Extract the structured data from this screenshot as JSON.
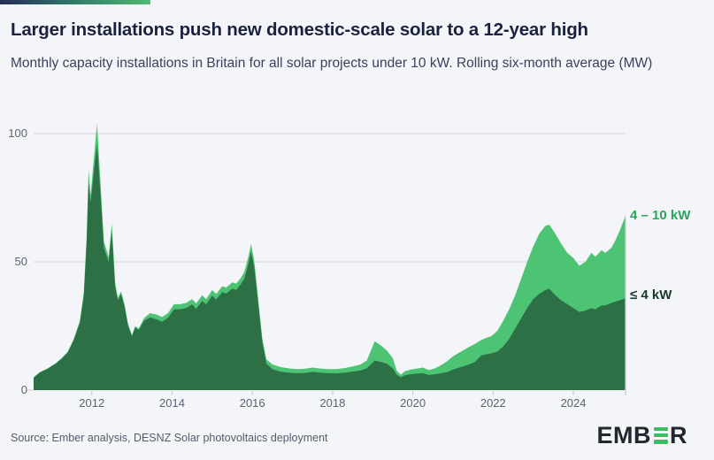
{
  "header": {
    "accent_colors": [
      "#262b5a",
      "#53b96f"
    ]
  },
  "footer": {
    "source": "Source: Ember analysis, DESNZ Solar photovoltaics deployment",
    "logo_left": "EMB",
    "logo_right": "R",
    "logo_green_bar_color": "#3dbd62"
  },
  "chart_data": {
    "type": "area",
    "stacked": true,
    "title": "Larger installations push new domestic-scale solar to a 12-year high",
    "subtitle": "Monthly capacity installations in Britain for all solar projects under 10 kW. Rolling six-month average (MW)",
    "ylim": [
      0,
      100
    ],
    "yticks": [
      0,
      50,
      100
    ],
    "xticks": [
      2012,
      2014,
      2016,
      2018,
      2020,
      2022,
      2024
    ],
    "xlim": [
      2010.55,
      2025.3
    ],
    "grid": "horizontal gridlines at 50 and 100, right edge axis line, bottom year ticks",
    "legend_position": "right of final data points",
    "colors": {
      "light_area": "#4dc473",
      "dark_area": "#2e7045",
      "grid": "#d7d9e0",
      "tick": "#c9ccd4",
      "axis_text": "#5d6174"
    },
    "legend": [
      {
        "label": "4 – 10 kW",
        "series": "4 – 10 kW",
        "color": "#4dc473",
        "text_color": "#28a65b"
      },
      {
        "label": "≤ 4 kW",
        "series": "≤ 4 kW",
        "color": "#2e7045",
        "text_color": "#173a29"
      }
    ],
    "x": [
      2010.55,
      2010.7,
      2010.9,
      2011.1,
      2011.25,
      2011.4,
      2011.55,
      2011.7,
      2011.8,
      2011.87,
      2011.92,
      2011.97,
      2012.05,
      2012.13,
      2012.22,
      2012.3,
      2012.42,
      2012.5,
      2012.58,
      2012.65,
      2012.73,
      2012.82,
      2012.9,
      2013.0,
      2013.08,
      2013.17,
      2013.3,
      2013.45,
      2013.6,
      2013.75,
      2013.9,
      2014.05,
      2014.2,
      2014.35,
      2014.5,
      2014.6,
      2014.75,
      2014.85,
      2015.0,
      2015.1,
      2015.25,
      2015.35,
      2015.5,
      2015.6,
      2015.7,
      2015.8,
      2015.9,
      2015.97,
      2016.05,
      2016.15,
      2016.25,
      2016.35,
      2016.5,
      2016.7,
      2016.9,
      2017.1,
      2017.3,
      2017.5,
      2017.7,
      2017.9,
      2018.1,
      2018.3,
      2018.5,
      2018.7,
      2018.85,
      2019.05,
      2019.2,
      2019.35,
      2019.5,
      2019.6,
      2019.7,
      2019.8,
      2019.95,
      2020.1,
      2020.25,
      2020.4,
      2020.55,
      2020.7,
      2020.85,
      2021.0,
      2021.2,
      2021.4,
      2021.55,
      2021.7,
      2021.85,
      2021.95,
      2022.1,
      2022.25,
      2022.4,
      2022.55,
      2022.7,
      2022.85,
      2023.0,
      2023.15,
      2023.3,
      2023.4,
      2023.55,
      2023.7,
      2023.85,
      2024.0,
      2024.15,
      2024.3,
      2024.45,
      2024.55,
      2024.7,
      2024.8,
      2024.95,
      2025.05,
      2025.15,
      2025.3
    ],
    "series": [
      {
        "name": "≤ 4 kW",
        "values": [
          4.8,
          6.8,
          8.3,
          10.3,
          12.2,
          14.7,
          19.5,
          26.2,
          36.5,
          57,
          81,
          73,
          85,
          96,
          76,
          55.5,
          50,
          62,
          40.5,
          35,
          37.5,
          32.2,
          25.3,
          21,
          24.4,
          23.4,
          27,
          28.3,
          27.7,
          26.7,
          28.2,
          31.5,
          31.5,
          32,
          33.4,
          31.7,
          34.8,
          33.4,
          36.8,
          35.3,
          38.2,
          37.7,
          39.6,
          39.1,
          41,
          43.4,
          49.2,
          54,
          47.5,
          33.2,
          18.7,
          10.3,
          8.2,
          7.2,
          6.8,
          6.6,
          6.7,
          7.1,
          6.8,
          6.6,
          6.5,
          6.8,
          7.2,
          7.7,
          8.5,
          11.5,
          11,
          10.3,
          8.5,
          6,
          5,
          5.8,
          6.2,
          6.4,
          6.6,
          5.9,
          6.2,
          6.6,
          7,
          8,
          9,
          10,
          11,
          13.5,
          14,
          14.3,
          15,
          17,
          20,
          24,
          28,
          32,
          35.5,
          37.5,
          39,
          39.5,
          37,
          35,
          33.5,
          32,
          30.5,
          31,
          32,
          31.5,
          33,
          33,
          34,
          34.5,
          35,
          35.8
        ]
      },
      {
        "name": "4 – 10 kW",
        "values": [
          0.2,
          0.2,
          0.2,
          0.2,
          0.3,
          0.3,
          0.5,
          0.8,
          1.5,
          3,
          5,
          3,
          5,
          8,
          4,
          2.5,
          2,
          3,
          1.5,
          1,
          1,
          0.8,
          0.7,
          0.5,
          0.6,
          0.6,
          1,
          1.7,
          1.8,
          1.8,
          1.8,
          2,
          2,
          2,
          2.1,
          2.1,
          2.2,
          2.1,
          2.2,
          2.2,
          2.3,
          2.3,
          2.4,
          2.4,
          2.5,
          2.6,
          2.8,
          3,
          2.5,
          1.8,
          1.3,
          1.7,
          1.8,
          1.8,
          1.7,
          1.6,
          1.6,
          1.7,
          1.6,
          1.6,
          1.7,
          1.8,
          2,
          2.3,
          3,
          7.5,
          6.5,
          5.2,
          4,
          1.5,
          1,
          1.5,
          1.8,
          2,
          2.2,
          1.9,
          2.3,
          3.1,
          4.2,
          5.2,
          6,
          6.8,
          7,
          6,
          6.5,
          6.7,
          8,
          10,
          11.5,
          13,
          15.5,
          18,
          20.5,
          23.5,
          25,
          25,
          24,
          22,
          20,
          19.5,
          18,
          19,
          21.5,
          20.5,
          21.5,
          20.5,
          21.5,
          24,
          27,
          32.2
        ]
      }
    ]
  }
}
